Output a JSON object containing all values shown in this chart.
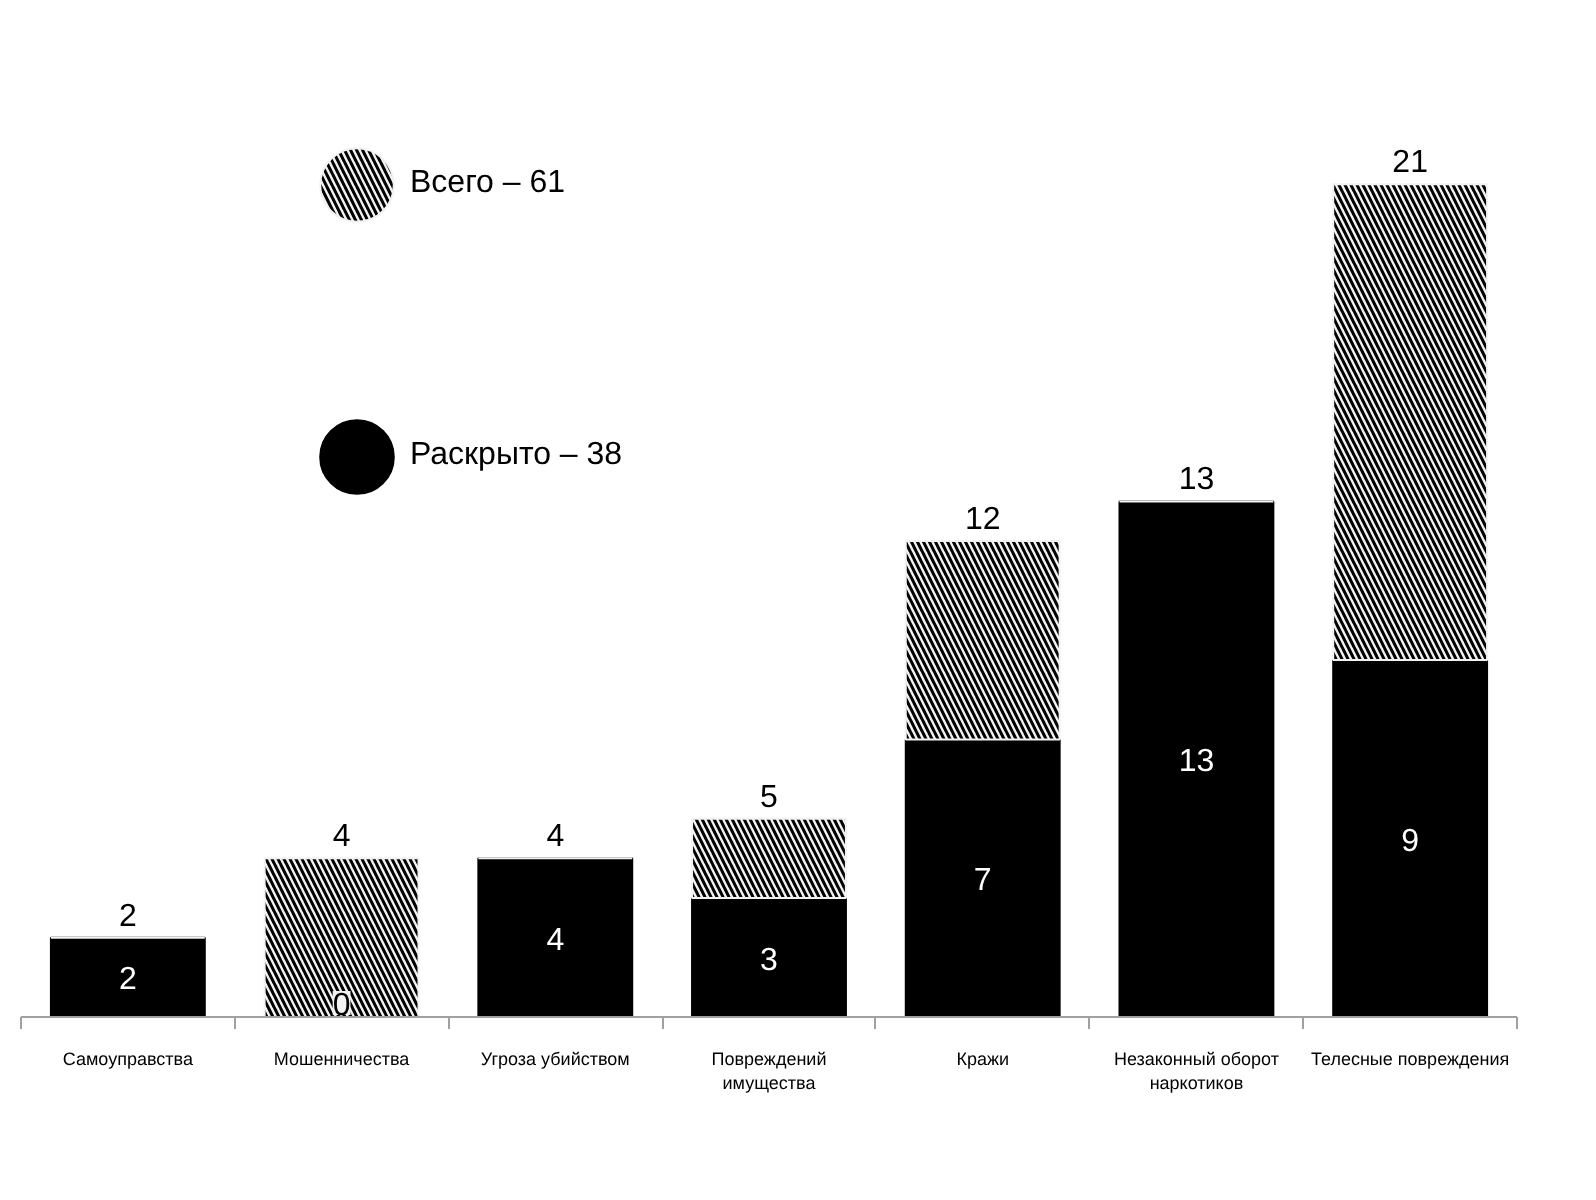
{
  "chart_data": {
    "type": "bar",
    "stacked": true,
    "categories": [
      "Самоуправства",
      "Мошенничества",
      "Угроза убийством",
      "Повреждений имущества",
      "Кражи",
      "Незаконный оборот наркотиков",
      "Телесные повреждения"
    ],
    "series": [
      {
        "name": "Раскрыто – 38",
        "color": "#000000",
        "values": [
          2,
          0,
          4,
          3,
          7,
          13,
          9
        ],
        "value_labels": [
          "2",
          "0",
          "4",
          "3",
          "7",
          "13",
          "9"
        ]
      },
      {
        "name": "Всего – 61",
        "color": "#f2f2f2",
        "values": [
          0,
          4,
          0,
          2,
          5,
          0,
          12
        ]
      }
    ],
    "totals": [
      "2",
      "4",
      "4",
      "5",
      "12",
      "13",
      "21"
    ],
    "legend": "top left",
    "tick_labels": "x"
  }
}
